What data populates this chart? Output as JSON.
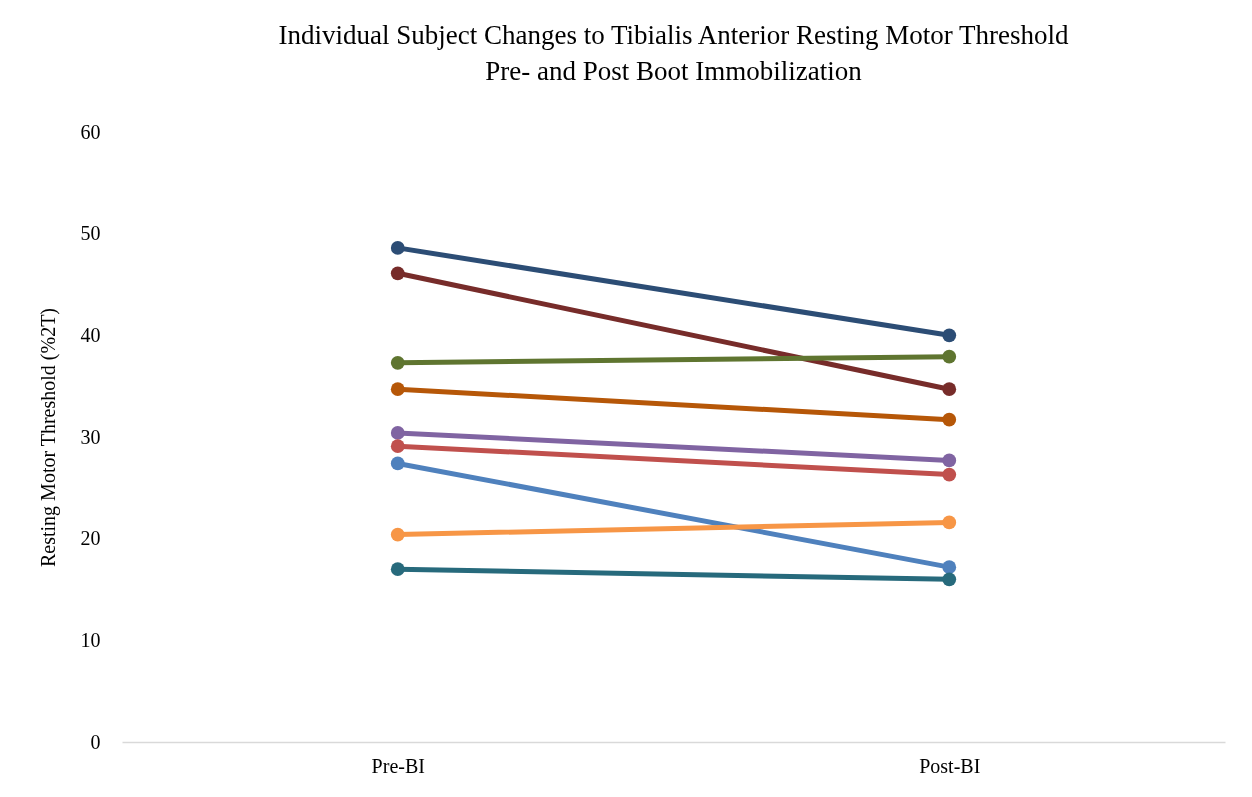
{
  "chart_data": {
    "type": "line",
    "title": [
      "Individual Subject Changes to Tibialis Anterior Resting Motor Threshold",
      "Pre- and Post Boot Immobilization"
    ],
    "ylabel": "Resting Motor Threshold (%2T)",
    "categories": [
      "Pre-BI",
      "Post-BI"
    ],
    "ylim": [
      0,
      60
    ],
    "yticks": [
      0,
      10,
      20,
      30,
      40,
      50,
      60
    ],
    "grid": false,
    "legend": false,
    "marker": "circle",
    "series": [
      {
        "color": "#2c4d75",
        "values": [
          48.6,
          40.0
        ]
      },
      {
        "color": "#772c2a",
        "values": [
          46.1,
          34.7
        ]
      },
      {
        "color": "#5f7530",
        "values": [
          37.3,
          37.9
        ]
      },
      {
        "color": "#b65708",
        "values": [
          34.7,
          31.7
        ]
      },
      {
        "color": "#8064a2",
        "values": [
          30.4,
          27.7
        ]
      },
      {
        "color": "#c0504d",
        "values": [
          29.1,
          26.3
        ]
      },
      {
        "color": "#4f81bd",
        "values": [
          27.4,
          17.2
        ]
      },
      {
        "color": "#f79646",
        "values": [
          20.4,
          21.6
        ]
      },
      {
        "color": "#276a7c",
        "values": [
          17.0,
          16.0
        ]
      }
    ]
  }
}
